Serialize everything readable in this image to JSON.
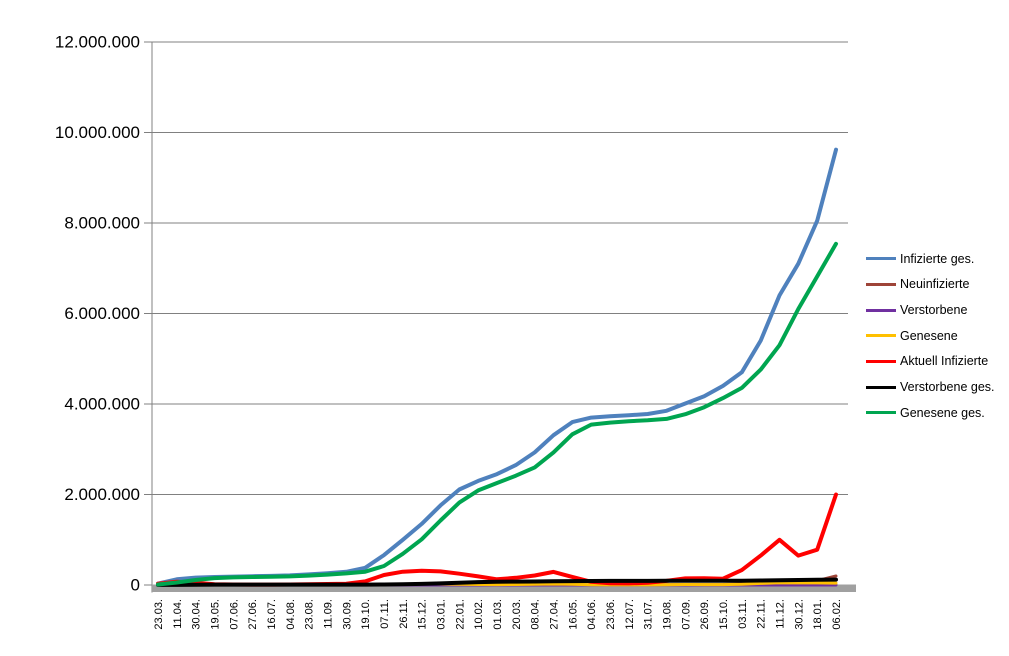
{
  "chart_data": {
    "type": "line",
    "title": "",
    "xlabel": "",
    "ylabel": "",
    "grid": "horizontal-gray",
    "legend_position": "right",
    "background_color": "#FFFFFF",
    "axis_color": "#808080",
    "x_axis_band_color": "#A0A0A0",
    "text_color": "#000000",
    "ylim": [
      0,
      12000000
    ],
    "y_ticks": [
      {
        "label": "0",
        "value": 0
      },
      {
        "label": "2.000.000",
        "value": 2000000
      },
      {
        "label": "4.000.000",
        "value": 4000000
      },
      {
        "label": "6.000.000",
        "value": 6000000
      },
      {
        "label": "8.000.000",
        "value": 8000000
      },
      {
        "label": "10.000.000",
        "value": 10000000
      },
      {
        "label": "12.000.000",
        "value": 12000000
      }
    ],
    "categories": [
      "23.03.",
      "11.04.",
      "30.04.",
      "19.05.",
      "07.06.",
      "27.06.",
      "16.07.",
      "04.08.",
      "23.08.",
      "11.09.",
      "30.09.",
      "19.10.",
      "07.11.",
      "26.11.",
      "15.12.",
      "03.01.",
      "22.01.",
      "10.02.",
      "01.03.",
      "20.03.",
      "08.04.",
      "27.04.",
      "16.05.",
      "04.06.",
      "23.06.",
      "12.07.",
      "31.07.",
      "19.08.",
      "07.09.",
      "26.09.",
      "15.10.",
      "03.11.",
      "22.11.",
      "11.12.",
      "30.12.",
      "18.01.",
      "06.02."
    ],
    "series": [
      {
        "name": "Infizierte ges.",
        "slug": "infizierte-ges",
        "color": "#4F81BD",
        "width": 4,
        "values": [
          30000,
          125000,
          163000,
          177000,
          186000,
          194000,
          202000,
          212000,
          234000,
          260000,
          292000,
          380000,
          660000,
          1000000,
          1350000,
          1760000,
          2110000,
          2300000,
          2450000,
          2650000,
          2930000,
          3310000,
          3600000,
          3700000,
          3730000,
          3750000,
          3780000,
          3850000,
          4010000,
          4170000,
          4400000,
          4700000,
          5400000,
          6400000,
          7100000,
          8050000,
          9620000
        ]
      },
      {
        "name": "Neuinfizierte",
        "slug": "neuinfizierte",
        "color": "#9E4438",
        "width": 3,
        "values": [
          4000,
          5000,
          2000,
          700,
          300,
          500,
          450,
          800,
          1800,
          1700,
          2500,
          8000,
          20000,
          18000,
          26000,
          16000,
          14000,
          8000,
          7500,
          16000,
          20000,
          18000,
          8000,
          3000,
          1000,
          1600,
          2600,
          8000,
          12000,
          8000,
          10000,
          25000,
          60000,
          55000,
          40000,
          95000,
          200000
        ]
      },
      {
        "name": "Verstorbene",
        "slug": "verstorbene",
        "color": "#7030A0",
        "width": 3,
        "values": [
          120,
          260,
          200,
          90,
          40,
          20,
          10,
          10,
          10,
          20,
          20,
          50,
          150,
          400,
          730,
          900,
          850,
          550,
          350,
          250,
          250,
          250,
          180,
          90,
          70,
          30,
          25,
          20,
          60,
          70,
          80,
          160,
          300,
          450,
          400,
          250,
          150
        ]
      },
      {
        "name": "Genesene",
        "slug": "genesene",
        "color": "#FFC000",
        "width": 3,
        "values": [
          2500,
          5500,
          3500,
          1500,
          700,
          450,
          400,
          650,
          1300,
          1600,
          2200,
          4500,
          15000,
          20000,
          23000,
          21000,
          18000,
          12000,
          8000,
          11000,
          18000,
          21000,
          15000,
          6000,
          2500,
          1500,
          1600,
          5000,
          10000,
          9000,
          8000,
          16000,
          35000,
          50000,
          46000,
          46000,
          42000
        ]
      },
      {
        "name": "Aktuell Infizierte",
        "slug": "aktuell-infizierte",
        "color": "#FF0000",
        "width": 4,
        "values": [
          28000,
          70000,
          50000,
          18000,
          11000,
          9000,
          9500,
          12000,
          17000,
          22000,
          29000,
          80000,
          220000,
          295000,
          315000,
          300000,
          250000,
          190000,
          125000,
          160000,
          210000,
          290000,
          180000,
          70000,
          40000,
          35000,
          48000,
          90000,
          145000,
          150000,
          140000,
          330000,
          650000,
          1000000,
          650000,
          780000,
          2000000
        ]
      },
      {
        "name": "Verstorbene ges.",
        "slug": "verstorbene-ges",
        "color": "#000000",
        "width": 4,
        "values": [
          1200,
          2800,
          6300,
          8000,
          8700,
          8900,
          9100,
          9200,
          9300,
          9400,
          9500,
          9900,
          11000,
          15000,
          24000,
          35000,
          51000,
          63000,
          70000,
          75000,
          78000,
          82500,
          86000,
          89000,
          90500,
          91200,
          91700,
          92000,
          92600,
          93500,
          94600,
          96000,
          99000,
          104000,
          111000,
          116000,
          119000
        ]
      },
      {
        "name": "Genesene ges.",
        "slug": "genesene-ges",
        "color": "#00A550",
        "width": 4,
        "values": [
          10000,
          55000,
          110000,
          152000,
          167000,
          176000,
          184000,
          191000,
          207000,
          229000,
          257000,
          295000,
          420000,
          690000,
          1010000,
          1425000,
          1820000,
          2090000,
          2255000,
          2415000,
          2600000,
          2930000,
          3330000,
          3545000,
          3590000,
          3620000,
          3640000,
          3670000,
          3775000,
          3930000,
          4130000,
          4355000,
          4760000,
          5300000,
          6100000,
          6820000,
          7540000
        ]
      }
    ]
  }
}
